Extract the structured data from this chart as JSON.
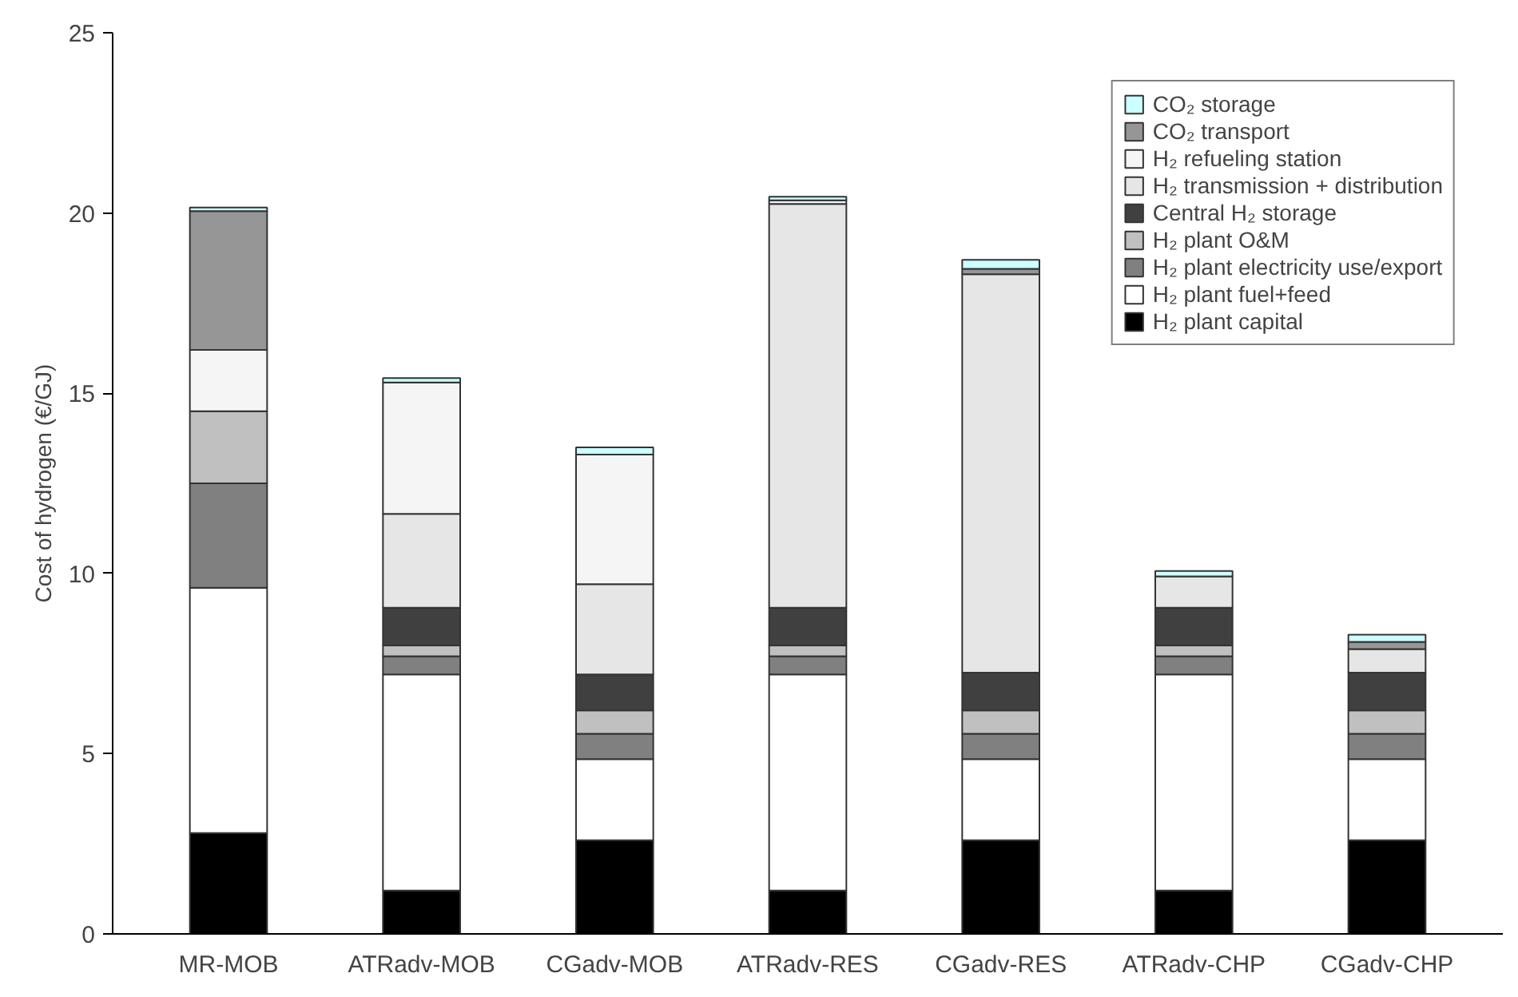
{
  "chart_data": {
    "type": "bar",
    "stacked": true,
    "ylabel": "Cost of hydrogen (€/GJ)",
    "categories": [
      "MR-MOB",
      "ATRadv-MOB",
      "CGadv-MOB",
      "ATRadv-RES",
      "CGadv-RES",
      "ATRadv-CHP",
      "CGadv-CHP"
    ],
    "series": [
      {
        "name": "H₂ plant capital",
        "color": "#000000",
        "values": [
          2.8,
          1.2,
          2.6,
          1.2,
          2.6,
          1.2,
          2.6
        ]
      },
      {
        "name": "H₂ plant fuel+feed",
        "color": "#ffffff",
        "values": [
          6.8,
          6.0,
          2.25,
          6.0,
          2.25,
          6.0,
          2.25
        ]
      },
      {
        "name": "H₂ plant electricity use/export",
        "color": "#808080",
        "values": [
          2.9,
          0.5,
          0.7,
          0.5,
          0.7,
          0.5,
          0.7
        ]
      },
      {
        "name": "H₂ plant O&M",
        "color": "#c0c0c0",
        "values": [
          2.0,
          0.3,
          0.65,
          0.3,
          0.65,
          0.3,
          0.65
        ]
      },
      {
        "name": "Central H₂ storage",
        "color": "#404040",
        "values": [
          null,
          1.05,
          1.0,
          1.05,
          1.05,
          1.05,
          1.05
        ]
      },
      {
        "name": "H₂ transmission + distribution",
        "color": "#e6e6e6",
        "values": [
          null,
          2.6,
          2.5,
          11.2,
          11.05,
          0.87,
          0.65
        ]
      },
      {
        "name": "H₂ refueling station",
        "color": "#f5f5f5",
        "values": [
          1.7,
          3.65,
          3.6,
          0.1,
          null,
          null,
          null
        ]
      },
      {
        "name": "CO₂ transport",
        "color": "#969696",
        "values": [
          3.85,
          null,
          null,
          null,
          0.15,
          null,
          0.2
        ]
      },
      {
        "name": "CO₂ storage",
        "color": "#ccffff",
        "values": [
          0.1,
          0.12,
          0.2,
          0.1,
          0.25,
          0.15,
          0.2
        ]
      }
    ],
    "ylim": [
      0,
      25
    ],
    "yticks": [
      0,
      5,
      10,
      15,
      20,
      25
    ],
    "grid": false,
    "legend": "top right"
  }
}
